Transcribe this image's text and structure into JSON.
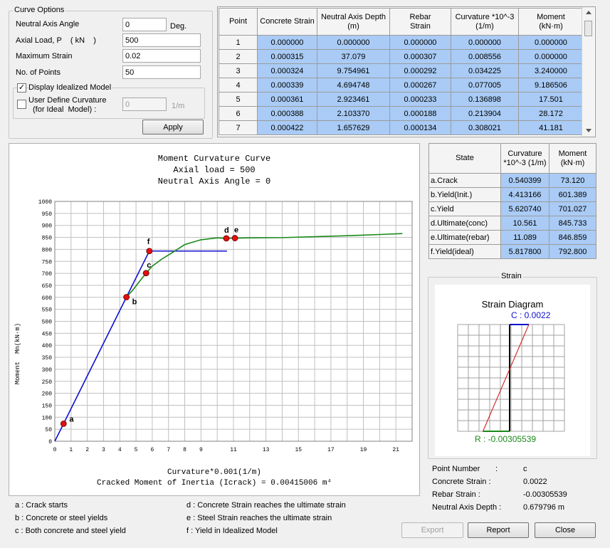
{
  "curve_options": {
    "legend": "Curve Options",
    "neutral_axis_angle_label": "Neutral Axis Angle",
    "neutral_axis_angle_value": "0",
    "neutral_axis_angle_unit": "Deg.",
    "axial_load_label": "Axial Load, P    ( kN    )",
    "axial_load_value": "500",
    "max_strain_label": "Maximum Strain",
    "max_strain_value": "0.02",
    "num_points_label": "No. of Points",
    "num_points_value": "50",
    "display_idealized_label": "Display Idealized Model",
    "display_idealized_checked": "✓",
    "user_define_label_1": "User Define Curvature",
    "user_define_label_2": "(for Ideal  Model) :",
    "user_define_value": "0",
    "user_define_unit": "1/m",
    "apply_label": "Apply"
  },
  "points_table": {
    "headers": [
      "Point",
      "Concrete Strain",
      "Neutral Axis Depth (m)",
      "Rebar Strain",
      "Curvature *10^-3 (1/m)",
      "Moment (kN·m)"
    ],
    "rows": [
      [
        "1",
        "0.000000",
        "0.000000",
        "0.000000",
        "0.000000",
        "0.000000"
      ],
      [
        "2",
        "0.000315",
        "37.079",
        "0.000307",
        "0.008556",
        "0.000000"
      ],
      [
        "3",
        "0.000324",
        "9.754961",
        "0.000292",
        "0.034225",
        "3.240000"
      ],
      [
        "4",
        "0.000339",
        "4.694748",
        "0.000267",
        "0.077005",
        "9.186506"
      ],
      [
        "5",
        "0.000361",
        "2.923461",
        "0.000233",
        "0.136898",
        "17.501"
      ],
      [
        "6",
        "0.000388",
        "2.103370",
        "0.000188",
        "0.213904",
        "28.172"
      ],
      [
        "7",
        "0.000422",
        "1.657629",
        "0.000134",
        "0.308021",
        "41.181"
      ]
    ]
  },
  "state_table": {
    "headers": [
      "State",
      "Curvature *10^-3 (1/m)",
      "Moment (kN·m)"
    ],
    "rows": [
      [
        "a.Crack",
        "0.540399",
        "73.120"
      ],
      [
        "b.Yield(Init.)",
        "4.413166",
        "601.389"
      ],
      [
        "c.Yield",
        "5.620740",
        "701.027"
      ],
      [
        "d.Ultimate(conc)",
        "10.561",
        "845.733"
      ],
      [
        "e.Ultimate(rebar)",
        "11.089",
        "846.859"
      ],
      [
        "f.Yield(ideal)",
        "5.817800",
        "792.800"
      ]
    ]
  },
  "chart_data": {
    "type": "line",
    "title_lines": [
      "Moment Curvature Curve",
      "Axial load = 500",
      "Neutral Axis Angle = 0"
    ],
    "xlabel": "Curvature*0.001(1/m)",
    "ylabel": "Moment  Mn(kN·m)",
    "footer": "Cracked Moment of Inertia (Icrack) = 0.00415006 m⁴",
    "xlim": [
      0,
      22
    ],
    "ylim": [
      0,
      1000
    ],
    "x_ticks": [
      "0",
      "1",
      "2",
      "3",
      "4",
      "5",
      "6",
      "7",
      "8",
      "9",
      "11",
      "13",
      "15",
      "17",
      "19",
      "21"
    ],
    "x_tick_values": [
      0,
      1,
      2,
      3,
      4,
      5,
      6,
      7,
      8,
      9,
      11,
      13,
      15,
      17,
      19,
      21
    ],
    "y_ticks": [
      "0",
      "50",
      "100",
      "150",
      "200",
      "250",
      "300",
      "350",
      "400",
      "450",
      "500",
      "550",
      "600",
      "650",
      "700",
      "750",
      "800",
      "850",
      "900",
      "950",
      "1000"
    ],
    "series": [
      {
        "color": "#1010d0",
        "points": [
          [
            0,
            0
          ],
          [
            0.54,
            73
          ],
          [
            4.41,
            601
          ],
          [
            5.82,
            793
          ],
          [
            10.6,
            793
          ]
        ]
      },
      {
        "color": "#1a8a1a",
        "points": [
          [
            4.41,
            601
          ],
          [
            4.8,
            630
          ],
          [
            5.2,
            665
          ],
          [
            5.62,
            701
          ],
          [
            6.0,
            730
          ],
          [
            6.6,
            760
          ],
          [
            7.2,
            785
          ],
          [
            8.0,
            820
          ],
          [
            9.0,
            840
          ],
          [
            10.0,
            848
          ],
          [
            10.56,
            846
          ],
          [
            11.09,
            847
          ],
          [
            12.0,
            848
          ],
          [
            14.0,
            849
          ],
          [
            16.0,
            853
          ],
          [
            18.0,
            857
          ],
          [
            20.0,
            862
          ],
          [
            21.4,
            866
          ]
        ]
      }
    ],
    "markers": [
      {
        "label": "a",
        "x": 0.54,
        "y": 73
      },
      {
        "label": "b",
        "x": 4.41,
        "y": 601
      },
      {
        "label": "c",
        "x": 5.62,
        "y": 701
      },
      {
        "label": "d",
        "x": 10.56,
        "y": 846
      },
      {
        "label": "e",
        "x": 11.09,
        "y": 847
      },
      {
        "label": "f",
        "x": 5.82,
        "y": 793
      }
    ]
  },
  "legend_notes": {
    "a": "a : Crack starts",
    "b": "b : Concrete or steel yields",
    "c": "c : Both concrete and steel yield",
    "d": "d : Concrete Strain reaches the ultimate strain",
    "e": "e : Steel Strain reaches the ultimate strain",
    "f": "f : Yield in Idealized Model"
  },
  "strain": {
    "legend": "Strain",
    "title": "Strain Diagram",
    "concrete_label": "C : 0.0022",
    "rebar_label": "R : -0.00305539",
    "concrete_strain": 0.0022,
    "rebar_strain": -0.00305539
  },
  "point_info": {
    "point_number_label": "Point Number",
    "point_number_sep": ":",
    "point_number_value": "c",
    "concrete_strain_label": "Concrete Strain :",
    "concrete_strain_value": "0.0022",
    "rebar_strain_label": "Rebar Strain :",
    "rebar_strain_value": "-0.00305539",
    "neutral_axis_label": "Neutral Axis Depth :",
    "neutral_axis_value": "0.679796 m"
  },
  "buttons": {
    "export": "Export",
    "report": "Report",
    "close": "Close"
  },
  "colors": {
    "cell_blue": "#a9cbf5",
    "ideal_line": "#1010d0",
    "curve_line": "#1a8a1a",
    "marker": "#e01010",
    "concrete_label": "#1010d0",
    "rebar_label": "#1a8a1a"
  }
}
